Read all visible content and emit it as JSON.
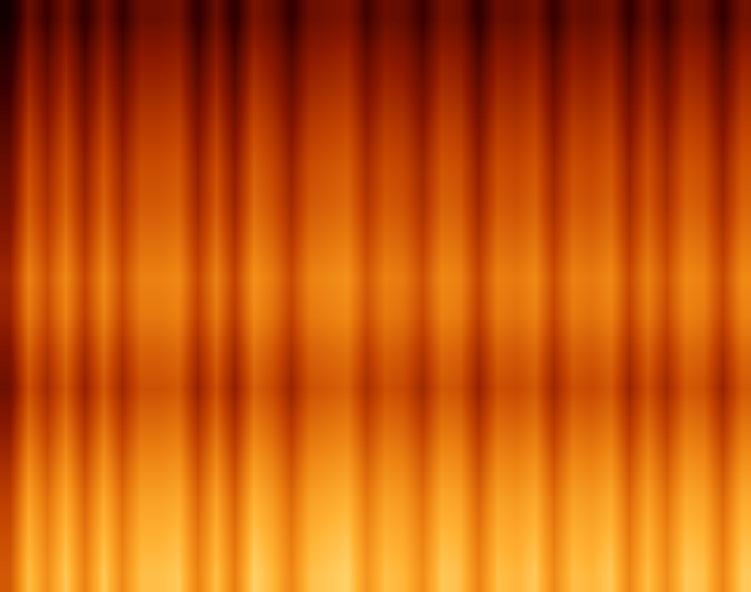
{
  "chart_data": {
    "type": "heatmap",
    "tick_labels": false,
    "zlim": [
      0,
      1
    ],
    "cells": [
      [
        0.6,
        0.85,
        0.73,
        0.87,
        0.7,
        0.87,
        0.72,
        0.85,
        0.85,
        0.87,
        0.7,
        0.85,
        0.69,
        0.89,
        0.83,
        0.71,
        0.85,
        0.87,
        0.89,
        0.75,
        0.85,
        0.83,
        0.73,
        0.87,
        0.85,
        0.7,
        0.85,
        0.83,
        0.87,
        0.72,
        0.85,
        0.83,
        0.87,
        0.71,
        0.85,
        0.73,
        0.87,
        0.85,
        0.71,
        0.87
      ],
      [
        0.57,
        0.82,
        0.7,
        0.84,
        0.67,
        0.84,
        0.69,
        0.82,
        0.82,
        0.84,
        0.67,
        0.82,
        0.66,
        0.86,
        0.8,
        0.68,
        0.82,
        0.84,
        0.86,
        0.72,
        0.82,
        0.8,
        0.7,
        0.84,
        0.82,
        0.67,
        0.82,
        0.8,
        0.84,
        0.69,
        0.82,
        0.8,
        0.84,
        0.68,
        0.82,
        0.7,
        0.84,
        0.82,
        0.68,
        0.84
      ],
      [
        0.53,
        0.78,
        0.66,
        0.8,
        0.63,
        0.8,
        0.65,
        0.78,
        0.78,
        0.8,
        0.63,
        0.78,
        0.62,
        0.82,
        0.76,
        0.64,
        0.78,
        0.8,
        0.82,
        0.68,
        0.78,
        0.76,
        0.66,
        0.8,
        0.78,
        0.63,
        0.78,
        0.76,
        0.8,
        0.65,
        0.78,
        0.76,
        0.8,
        0.64,
        0.78,
        0.66,
        0.8,
        0.78,
        0.64,
        0.8
      ],
      [
        0.47,
        0.72,
        0.6,
        0.74,
        0.57,
        0.74,
        0.59,
        0.72,
        0.72,
        0.74,
        0.57,
        0.72,
        0.56,
        0.76,
        0.7,
        0.58,
        0.72,
        0.74,
        0.76,
        0.62,
        0.72,
        0.7,
        0.6,
        0.74,
        0.72,
        0.57,
        0.72,
        0.7,
        0.74,
        0.59,
        0.72,
        0.7,
        0.74,
        0.58,
        0.72,
        0.6,
        0.74,
        0.72,
        0.58,
        0.74
      ],
      [
        0.4,
        0.65,
        0.53,
        0.67,
        0.5,
        0.67,
        0.52,
        0.65,
        0.65,
        0.67,
        0.5,
        0.65,
        0.49,
        0.69,
        0.63,
        0.51,
        0.65,
        0.67,
        0.69,
        0.55,
        0.65,
        0.63,
        0.53,
        0.67,
        0.65,
        0.5,
        0.65,
        0.63,
        0.67,
        0.52,
        0.65,
        0.63,
        0.67,
        0.51,
        0.65,
        0.53,
        0.67,
        0.65,
        0.51,
        0.67
      ],
      [
        0.33,
        0.58,
        0.46,
        0.6,
        0.43,
        0.6,
        0.45,
        0.58,
        0.58,
        0.6,
        0.43,
        0.58,
        0.42,
        0.62,
        0.56,
        0.44,
        0.58,
        0.6,
        0.62,
        0.48,
        0.58,
        0.56,
        0.46,
        0.6,
        0.58,
        0.43,
        0.58,
        0.56,
        0.6,
        0.45,
        0.58,
        0.56,
        0.6,
        0.44,
        0.58,
        0.46,
        0.6,
        0.58,
        0.44,
        0.6
      ],
      [
        0.37,
        0.62,
        0.5,
        0.64,
        0.47,
        0.64,
        0.49,
        0.62,
        0.62,
        0.64,
        0.47,
        0.62,
        0.46,
        0.66,
        0.6,
        0.48,
        0.62,
        0.64,
        0.66,
        0.52,
        0.62,
        0.6,
        0.5,
        0.64,
        0.62,
        0.47,
        0.62,
        0.6,
        0.64,
        0.49,
        0.62,
        0.6,
        0.64,
        0.48,
        0.62,
        0.5,
        0.64,
        0.62,
        0.48,
        0.64
      ],
      [
        0.43,
        0.68,
        0.56,
        0.7,
        0.53,
        0.7,
        0.55,
        0.68,
        0.68,
        0.7,
        0.53,
        0.68,
        0.52,
        0.72,
        0.66,
        0.54,
        0.68,
        0.7,
        0.72,
        0.58,
        0.68,
        0.66,
        0.56,
        0.7,
        0.68,
        0.53,
        0.68,
        0.66,
        0.7,
        0.55,
        0.68,
        0.66,
        0.7,
        0.54,
        0.68,
        0.56,
        0.7,
        0.68,
        0.54,
        0.7
      ],
      [
        0.45,
        0.7,
        0.58,
        0.72,
        0.55,
        0.72,
        0.57,
        0.7,
        0.7,
        0.72,
        0.55,
        0.7,
        0.54,
        0.74,
        0.68,
        0.56,
        0.7,
        0.72,
        0.74,
        0.6,
        0.7,
        0.68,
        0.58,
        0.72,
        0.7,
        0.55,
        0.7,
        0.68,
        0.72,
        0.57,
        0.7,
        0.68,
        0.72,
        0.56,
        0.7,
        0.58,
        0.72,
        0.7,
        0.56,
        0.72
      ],
      [
        0.4,
        0.65,
        0.53,
        0.67,
        0.5,
        0.67,
        0.52,
        0.65,
        0.65,
        0.67,
        0.5,
        0.65,
        0.49,
        0.69,
        0.63,
        0.51,
        0.65,
        0.67,
        0.69,
        0.55,
        0.65,
        0.63,
        0.53,
        0.67,
        0.65,
        0.5,
        0.65,
        0.63,
        0.67,
        0.52,
        0.65,
        0.63,
        0.67,
        0.51,
        0.65,
        0.53,
        0.67,
        0.65,
        0.51,
        0.67
      ],
      [
        0.35,
        0.6,
        0.48,
        0.62,
        0.45,
        0.62,
        0.47,
        0.6,
        0.6,
        0.62,
        0.45,
        0.6,
        0.44,
        0.64,
        0.58,
        0.46,
        0.6,
        0.62,
        0.64,
        0.5,
        0.6,
        0.58,
        0.48,
        0.62,
        0.6,
        0.45,
        0.6,
        0.58,
        0.62,
        0.47,
        0.6,
        0.58,
        0.62,
        0.46,
        0.6,
        0.48,
        0.62,
        0.6,
        0.46,
        0.62
      ],
      [
        0.32,
        0.57,
        0.45,
        0.59,
        0.42,
        0.59,
        0.44,
        0.57,
        0.57,
        0.59,
        0.42,
        0.57,
        0.41,
        0.61,
        0.55,
        0.43,
        0.57,
        0.59,
        0.61,
        0.47,
        0.57,
        0.55,
        0.45,
        0.59,
        0.57,
        0.42,
        0.57,
        0.55,
        0.59,
        0.44,
        0.57,
        0.55,
        0.59,
        0.43,
        0.57,
        0.45,
        0.59,
        0.57,
        0.43,
        0.59
      ],
      [
        0.27,
        0.52,
        0.4,
        0.54,
        0.37,
        0.54,
        0.39,
        0.52,
        0.52,
        0.54,
        0.37,
        0.52,
        0.36,
        0.56,
        0.5,
        0.38,
        0.52,
        0.54,
        0.56,
        0.42,
        0.52,
        0.5,
        0.4,
        0.54,
        0.52,
        0.37,
        0.52,
        0.5,
        0.54,
        0.39,
        0.52,
        0.5,
        0.54,
        0.38,
        0.52,
        0.4,
        0.54,
        0.52,
        0.38,
        0.54
      ],
      [
        0.21,
        0.46,
        0.34,
        0.48,
        0.31,
        0.48,
        0.33,
        0.46,
        0.46,
        0.48,
        0.31,
        0.46,
        0.3,
        0.5,
        0.44,
        0.32,
        0.46,
        0.48,
        0.5,
        0.36,
        0.46,
        0.44,
        0.34,
        0.48,
        0.46,
        0.31,
        0.46,
        0.44,
        0.48,
        0.33,
        0.46,
        0.44,
        0.48,
        0.32,
        0.46,
        0.34,
        0.48,
        0.46,
        0.32,
        0.48
      ],
      [
        0.15,
        0.4,
        0.28,
        0.42,
        0.25,
        0.42,
        0.27,
        0.4,
        0.4,
        0.42,
        0.25,
        0.4,
        0.24,
        0.44,
        0.38,
        0.26,
        0.4,
        0.42,
        0.44,
        0.3,
        0.4,
        0.38,
        0.28,
        0.42,
        0.4,
        0.25,
        0.4,
        0.38,
        0.42,
        0.27,
        0.4,
        0.38,
        0.42,
        0.26,
        0.4,
        0.28,
        0.42,
        0.4,
        0.26,
        0.42
      ],
      [
        0.07,
        0.32,
        0.2,
        0.34,
        0.17,
        0.34,
        0.19,
        0.32,
        0.32,
        0.34,
        0.17,
        0.32,
        0.16,
        0.36,
        0.3,
        0.18,
        0.32,
        0.34,
        0.36,
        0.22,
        0.32,
        0.3,
        0.2,
        0.34,
        0.32,
        0.17,
        0.32,
        0.3,
        0.34,
        0.19,
        0.32,
        0.3,
        0.34,
        0.18,
        0.32,
        0.2,
        0.34,
        0.32,
        0.18,
        0.34
      ]
    ]
  }
}
